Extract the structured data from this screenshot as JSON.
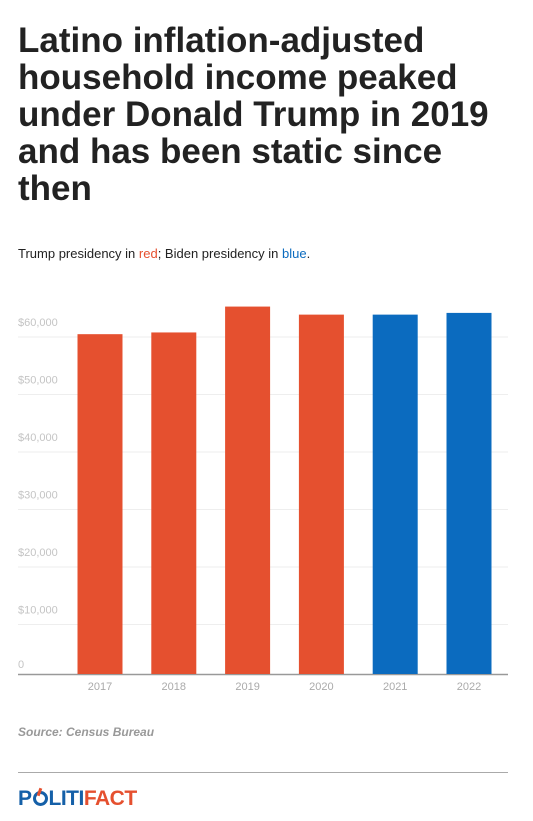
{
  "title": "Latino inflation-adjusted household income peaked under Donald Trump in 2019 and has been static since then",
  "subtitle": {
    "part1": "Trump presidency in ",
    "red_word": "red",
    "part2": "; Biden presidency in ",
    "blue_word": "blue",
    "part3": "."
  },
  "source": "Source: Census Bureau",
  "logo": {
    "part1": "P",
    "part2": "LITI",
    "part3": "FACT"
  },
  "colors": {
    "trump": "#e5502f",
    "biden": "#0b6bbf",
    "logo_blue": "#1560a8",
    "logo_red": "#e5502f"
  },
  "chart_data": {
    "type": "bar",
    "categories": [
      "2017",
      "2018",
      "2019",
      "2020",
      "2021",
      "2022"
    ],
    "values": [
      59100,
      59400,
      63900,
      62500,
      62500,
      62800
    ],
    "presidency": [
      "trump",
      "trump",
      "trump",
      "trump",
      "biden",
      "biden"
    ],
    "ylim": [
      0,
      60000
    ],
    "yticks": [
      0,
      10000,
      20000,
      30000,
      40000,
      50000,
      60000
    ],
    "ytick_labels": [
      "0",
      "$10,000",
      "$20,000",
      "$30,000",
      "$40,000",
      "$50,000",
      "$60,000"
    ],
    "grid": true,
    "legend": "none"
  }
}
